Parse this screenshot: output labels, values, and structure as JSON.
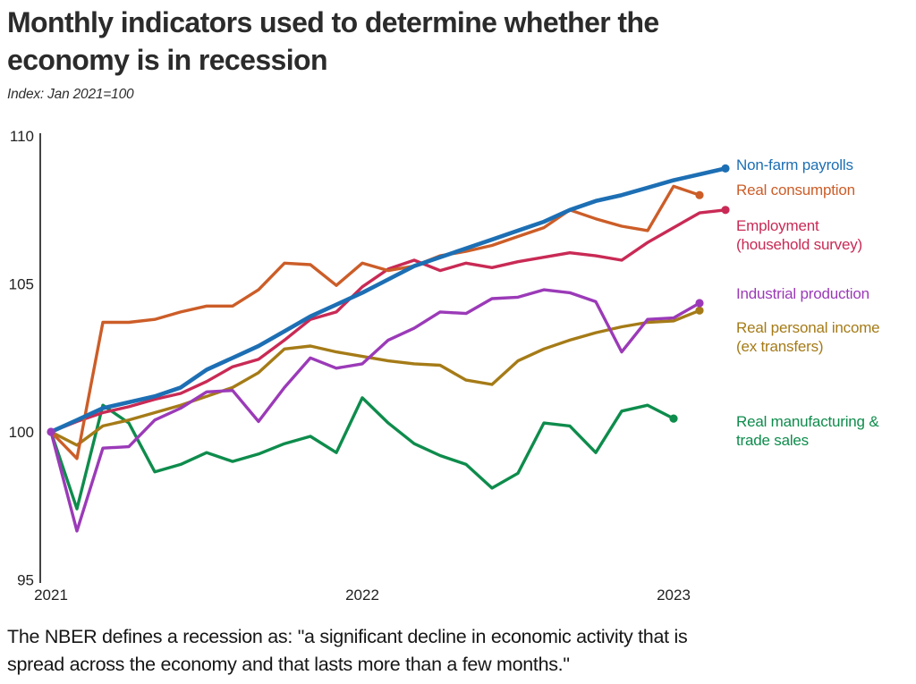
{
  "header": {
    "title_line1": "Monthly indicators used to determine whether the",
    "title_line2": "economy is in recession",
    "subtitle": "Index: Jan 2021=100"
  },
  "footer": {
    "line1": "The NBER defines a recession as: \"a significant decline in economic activity that is",
    "line2": "spread across the economy and that lasts more than a few months.\""
  },
  "chart_data": {
    "type": "line",
    "title": "Monthly indicators used to determine whether the economy is in recession",
    "index_note": "Index: Jan 2021=100",
    "months": [
      "2021-01",
      "2021-02",
      "2021-03",
      "2021-04",
      "2021-05",
      "2021-06",
      "2021-07",
      "2021-08",
      "2021-09",
      "2021-10",
      "2021-11",
      "2021-12",
      "2022-01",
      "2022-02",
      "2022-03",
      "2022-04",
      "2022-05",
      "2022-06",
      "2022-07",
      "2022-08",
      "2022-09",
      "2022-10",
      "2022-11",
      "2022-12",
      "2023-01",
      "2023-02",
      "2023-03"
    ],
    "y_axis": {
      "ticks": [
        110,
        105,
        100,
        95
      ],
      "ylim": [
        95,
        110
      ],
      "grid": false
    },
    "x_axis": {
      "year_ticks": [
        {
          "label": "2021",
          "month_index": 0
        },
        {
          "label": "2022",
          "month_index": 12
        },
        {
          "label": "2023",
          "month_index": 24
        }
      ]
    },
    "legend_position": "right",
    "series": [
      {
        "id": "manufacturing",
        "name": "Real manufacturing & trade sales",
        "color": "#0e8c4c",
        "values": [
          100,
          97.4,
          100.9,
          100.3,
          98.65,
          98.9,
          99.3,
          99.0,
          99.25,
          99.6,
          99.85,
          99.3,
          101.15,
          100.3,
          99.6,
          99.2,
          98.9,
          98.1,
          98.6,
          100.3,
          100.2,
          99.3,
          100.7,
          100.9,
          100.45
        ]
      },
      {
        "id": "income",
        "name": "Real personal income (ex transfers)",
        "color": "#a57b17",
        "values": [
          100,
          99.55,
          100.2,
          100.4,
          100.65,
          100.9,
          101.2,
          101.5,
          102.0,
          102.8,
          102.9,
          102.7,
          102.55,
          102.4,
          102.3,
          102.25,
          101.75,
          101.6,
          102.4,
          102.8,
          103.1,
          103.35,
          103.55,
          103.7,
          103.75,
          104.1
        ]
      },
      {
        "id": "industrial",
        "name": "Industrial production",
        "color": "#9b3ab8",
        "values": [
          100,
          96.65,
          99.45,
          99.5,
          100.4,
          100.8,
          101.35,
          101.4,
          100.35,
          101.5,
          102.5,
          102.15,
          102.3,
          103.1,
          103.5,
          104.05,
          104.0,
          104.5,
          104.55,
          104.8,
          104.7,
          104.4,
          102.7,
          103.8,
          103.85,
          104.35
        ]
      },
      {
        "id": "employment",
        "name": "Employment (household survey)",
        "color": "#c92a55",
        "values": [
          100,
          100.35,
          100.65,
          100.85,
          101.1,
          101.3,
          101.7,
          102.2,
          102.45,
          103.1,
          103.8,
          104.05,
          104.9,
          105.5,
          105.8,
          105.45,
          105.7,
          105.55,
          105.75,
          105.9,
          106.05,
          105.95,
          105.8,
          106.4,
          106.9,
          107.4,
          107.5
        ]
      },
      {
        "id": "consumption",
        "name": "Real consumption",
        "color": "#cc5d28",
        "values": [
          100,
          99.1,
          103.7,
          103.7,
          103.8,
          104.05,
          104.25,
          104.25,
          104.8,
          105.7,
          105.65,
          104.95,
          105.7,
          105.45,
          105.6,
          105.95,
          106.1,
          106.3,
          106.6,
          106.9,
          107.5,
          107.2,
          106.95,
          106.8,
          108.3,
          108.0
        ]
      },
      {
        "id": "nonfarm",
        "name": "Non-farm payrolls",
        "color": "#1d6fb4",
        "values": [
          100,
          100.4,
          100.8,
          101.0,
          101.2,
          101.5,
          102.1,
          102.5,
          102.9,
          103.4,
          103.9,
          104.3,
          104.7,
          105.15,
          105.6,
          105.9,
          106.2,
          106.5,
          106.8,
          107.1,
          107.5,
          107.8,
          108.0,
          108.25,
          108.5,
          108.7,
          108.9
        ]
      }
    ],
    "legend": [
      {
        "series": "nonfarm",
        "lines": [
          "Non-farm payrolls"
        ]
      },
      {
        "series": "consumption",
        "lines": [
          "Real consumption"
        ]
      },
      {
        "series": "employment",
        "lines": [
          "Employment",
          "(household survey)"
        ]
      },
      {
        "series": "industrial",
        "lines": [
          "Industrial production"
        ]
      },
      {
        "series": "income",
        "lines": [
          "Real personal income",
          "(ex transfers)"
        ]
      },
      {
        "series": "manufacturing",
        "lines": [
          "Real manufacturing &",
          "trade sales"
        ]
      }
    ],
    "start_marker": {
      "month_index": 0,
      "value": 100,
      "color": "#9b3ab8"
    }
  }
}
